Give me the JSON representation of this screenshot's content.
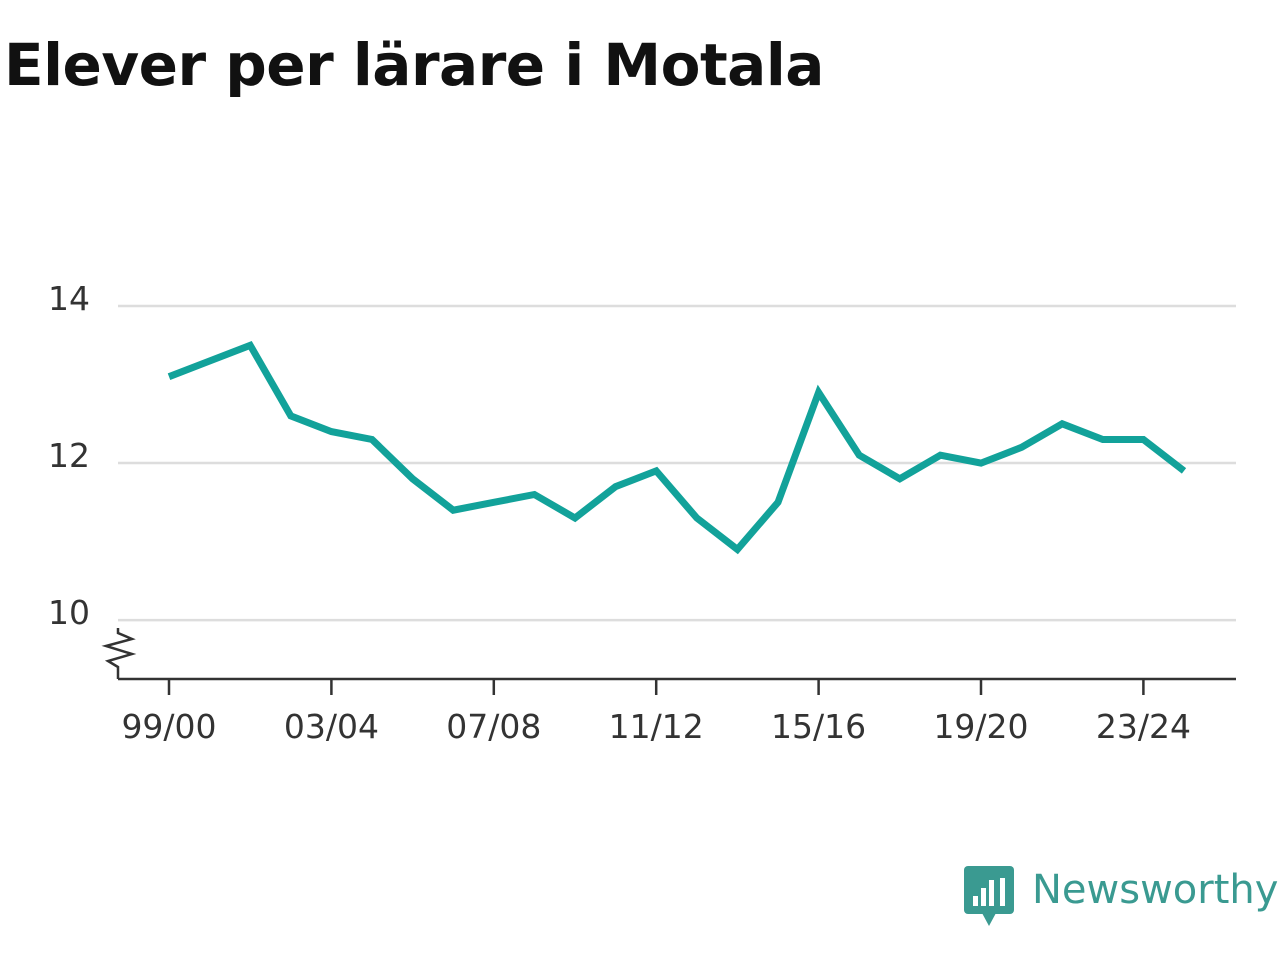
{
  "title": "Elever per lärare i Motala",
  "brand": {
    "name": "Newsworthy",
    "color": "#3a9a91",
    "icon": "newsworthy-logo-icon"
  },
  "colors": {
    "line": "#12a29a",
    "grid": "#dddddd",
    "axis": "#333333",
    "text": "#111111"
  },
  "chart_data": {
    "type": "line",
    "title": "Elever per lärare i Motala",
    "xlabel": "",
    "ylabel": "",
    "x": [
      "99/00",
      "00/01",
      "01/02",
      "02/03",
      "03/04",
      "04/05",
      "05/06",
      "06/07",
      "07/08",
      "08/09",
      "09/10",
      "10/11",
      "11/12",
      "12/13",
      "13/14",
      "14/15",
      "15/16",
      "16/17",
      "17/18",
      "18/19",
      "19/20",
      "20/21",
      "21/22",
      "22/23",
      "23/24",
      "24/25"
    ],
    "series": [
      {
        "values": [
          13.1,
          13.3,
          13.5,
          12.6,
          12.4,
          12.3,
          11.8,
          11.4,
          11.5,
          11.6,
          11.3,
          11.7,
          11.9,
          11.3,
          10.9,
          11.5,
          12.9,
          12.1,
          11.8,
          12.1,
          12.0,
          12.2,
          12.5,
          12.3,
          12.3,
          11.9
        ]
      }
    ],
    "x_tick_labels": [
      "99/00",
      "03/04",
      "07/08",
      "11/12",
      "15/16",
      "19/20",
      "23/24"
    ],
    "y_ticks": [
      10,
      12,
      14
    ],
    "ylim": [
      9.25,
      14
    ],
    "grid": true,
    "y_axis_break": true,
    "legend": "none"
  }
}
